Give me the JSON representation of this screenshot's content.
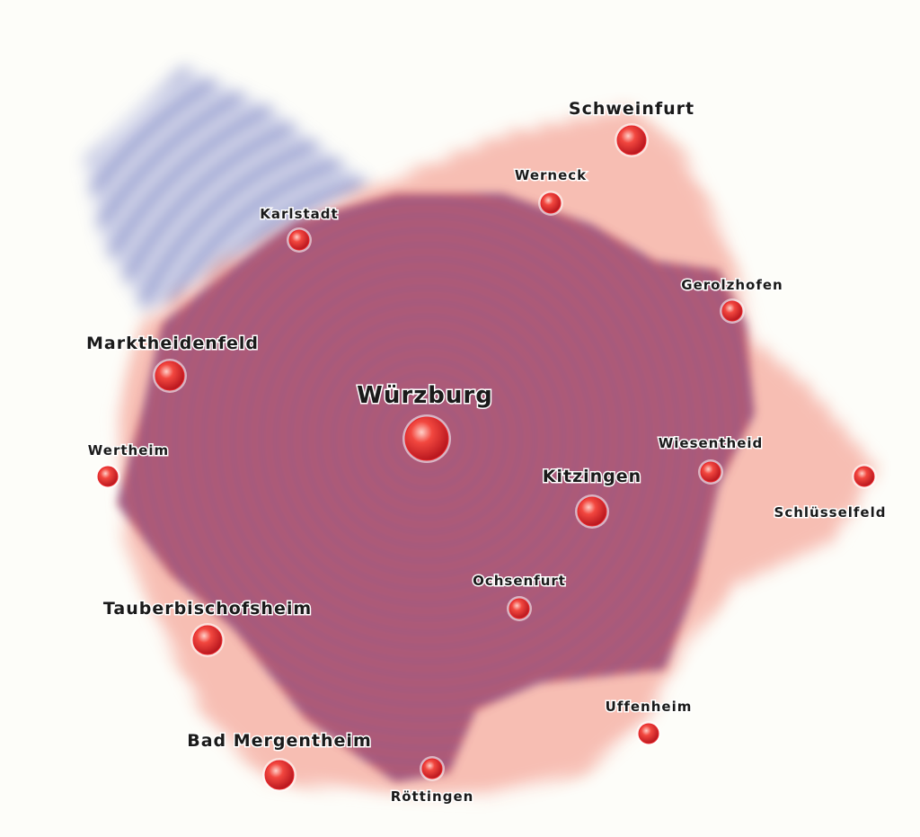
{
  "map": {
    "colors": {
      "background": "#fdfdf9",
      "blue_ring": "#5a67b8",
      "orange_ring": "#ef6a4e",
      "core": "#a83a55",
      "marker": "#e8262a",
      "label": "#1a1a1a"
    },
    "cities": [
      {
        "id": "wuerzburg",
        "name": "Würzburg",
        "size": "xl"
      },
      {
        "id": "schweinfurt",
        "name": "Schweinfurt",
        "size": "m"
      },
      {
        "id": "werneck",
        "name": "Werneck",
        "size": "s"
      },
      {
        "id": "karlstadt",
        "name": "Karlstadt",
        "size": "s"
      },
      {
        "id": "gerolzhofen",
        "name": "Gerolzhofen",
        "size": "s"
      },
      {
        "id": "marktheidenfeld",
        "name": "Marktheidenfeld",
        "size": "m"
      },
      {
        "id": "wertheim",
        "name": "Wertheim",
        "size": "s"
      },
      {
        "id": "wiesentheid",
        "name": "Wiesentheid",
        "size": "s"
      },
      {
        "id": "schluesselfeld",
        "name": "Schlüsselfeld",
        "size": "s"
      },
      {
        "id": "kitzingen",
        "name": "Kitzingen",
        "size": "m"
      },
      {
        "id": "ochsenfurt",
        "name": "Ochsenfurt",
        "size": "s"
      },
      {
        "id": "tauberbischofsheim",
        "name": "Tauberbischofsheim",
        "size": "m"
      },
      {
        "id": "uffenheim",
        "name": "Uffenheim",
        "size": "s"
      },
      {
        "id": "bad-mergentheim",
        "name": "Bad  Mergentheim",
        "size": "m"
      },
      {
        "id": "roettingen",
        "name": "Röttingen",
        "size": "s"
      }
    ]
  }
}
